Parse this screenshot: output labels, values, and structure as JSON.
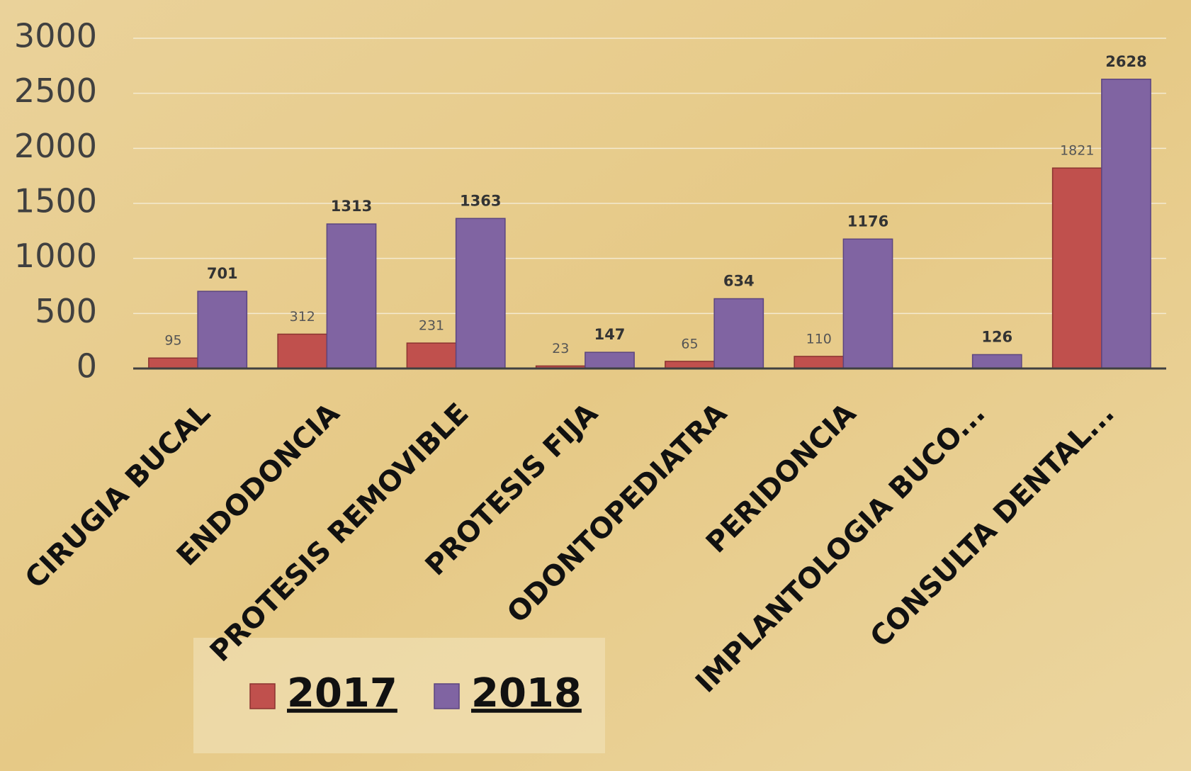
{
  "chart_data": {
    "type": "bar",
    "categories": [
      "CIRUGIA BUCAL",
      "ENDODONCIA",
      "PROTESIS REMOVIBLE",
      "PROTESIS FIJA",
      "ODONTOPEDIATRA",
      "PERIDONCIA",
      "IMPLANTOLOGIA BUCO...",
      "CONSULTA DENTAL..."
    ],
    "series": [
      {
        "name": "2017",
        "color": "#c0504d",
        "values": [
          95,
          312,
          231,
          23,
          65,
          110,
          null,
          1821
        ]
      },
      {
        "name": "2018",
        "color": "#8064a2",
        "values": [
          701,
          1313,
          1363,
          147,
          634,
          1176,
          126,
          2628
        ]
      }
    ],
    "ylim": [
      0,
      3000
    ],
    "yticks": [
      0,
      500,
      1000,
      1500,
      2000,
      2500,
      3000
    ],
    "grid": true,
    "legend": "bottom-left"
  }
}
